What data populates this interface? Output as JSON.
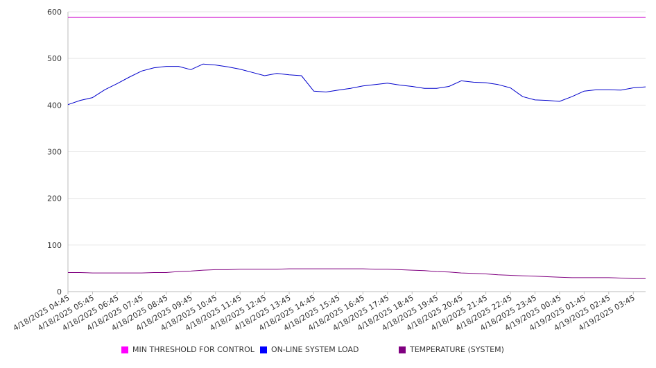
{
  "chart_data": {
    "type": "line",
    "title": "",
    "xlabel": "",
    "ylabel": "",
    "ylim": [
      0,
      600
    ],
    "y_ticks": [
      "0",
      "100",
      "200",
      "300",
      "400",
      "500",
      "600"
    ],
    "grid": true,
    "legend_position": "bottom",
    "x_tick_labels": [
      "4/18/2025 04:45",
      "4/18/2025 05:45",
      "4/18/2025 06:45",
      "4/18/2025 07:45",
      "4/18/2025 08:45",
      "4/18/2025 09:45",
      "4/18/2025 10:45",
      "4/18/2025 11:45",
      "4/18/2025 12:45",
      "4/18/2025 13:45",
      "4/18/2025 14:45",
      "4/18/2025 15:45",
      "4/18/2025 16:45",
      "4/18/2025 17:45",
      "4/18/2025 18:45",
      "4/18/2025 19:45",
      "4/18/2025 20:45",
      "4/18/2025 21:45",
      "4/18/2025 22:45",
      "4/18/2025 23:45",
      "4/19/2025 00:45",
      "4/19/2025 01:45",
      "4/19/2025 02:45",
      "4/19/2025 03:45"
    ],
    "x": [
      "4/18/2025 04:45",
      "4/18/2025 05:15",
      "4/18/2025 05:45",
      "4/18/2025 06:15",
      "4/18/2025 06:45",
      "4/18/2025 07:15",
      "4/18/2025 07:45",
      "4/18/2025 08:15",
      "4/18/2025 08:45",
      "4/18/2025 09:15",
      "4/18/2025 09:45",
      "4/18/2025 10:15",
      "4/18/2025 10:45",
      "4/18/2025 11:15",
      "4/18/2025 11:45",
      "4/18/2025 12:15",
      "4/18/2025 12:45",
      "4/18/2025 13:15",
      "4/18/2025 13:45",
      "4/18/2025 14:15",
      "4/18/2025 14:45",
      "4/18/2025 15:15",
      "4/18/2025 15:45",
      "4/18/2025 16:15",
      "4/18/2025 16:45",
      "4/18/2025 17:15",
      "4/18/2025 17:45",
      "4/18/2025 18:15",
      "4/18/2025 18:45",
      "4/18/2025 19:15",
      "4/18/2025 19:45",
      "4/18/2025 20:15",
      "4/18/2025 20:45",
      "4/18/2025 21:15",
      "4/18/2025 21:45",
      "4/18/2025 22:15",
      "4/18/2025 22:45",
      "4/18/2025 23:15",
      "4/18/2025 23:45",
      "4/19/2025 00:15",
      "4/19/2025 00:45",
      "4/19/2025 01:15",
      "4/19/2025 01:45",
      "4/19/2025 02:15",
      "4/19/2025 02:45",
      "4/19/2025 03:15",
      "4/19/2025 03:45",
      "4/19/2025 04:15"
    ],
    "series": [
      {
        "name": "MIN THRESHOLD FOR CONTROL",
        "color": "#cc00cc",
        "values": [
          588,
          588,
          588,
          588,
          588,
          588,
          588,
          588,
          588,
          588,
          588,
          588,
          588,
          588,
          588,
          588,
          588,
          588,
          588,
          588,
          588,
          588,
          588,
          588,
          588,
          588,
          588,
          588,
          588,
          588,
          588,
          588,
          588,
          588,
          588,
          588,
          588,
          588,
          588,
          588,
          588,
          588,
          588,
          588,
          588,
          588,
          588,
          588
        ]
      },
      {
        "name": "ON-LINE SYSTEM LOAD",
        "color": "#0000cc",
        "values": [
          401,
          410,
          416,
          433,
          446,
          460,
          473,
          480,
          483,
          483,
          476,
          488,
          486,
          482,
          477,
          470,
          463,
          468,
          465,
          463,
          430,
          428,
          432,
          436,
          441,
          444,
          447,
          443,
          440,
          436,
          436,
          440,
          452,
          449,
          448,
          444,
          437,
          418,
          411,
          410,
          408,
          418,
          430,
          433,
          433,
          432,
          437,
          439
        ]
      },
      {
        "name": "TEMPERATURE (SYSTEM)",
        "color": "#800080",
        "values": [
          41,
          41,
          40,
          40,
          40,
          40,
          40,
          41,
          41,
          43,
          44,
          46,
          47,
          47,
          48,
          48,
          48,
          48,
          49,
          49,
          49,
          49,
          49,
          49,
          49,
          48,
          48,
          47,
          46,
          45,
          43,
          42,
          40,
          39,
          38,
          36,
          35,
          34,
          33,
          32,
          31,
          30,
          30,
          30,
          30,
          29,
          28,
          28
        ]
      }
    ]
  },
  "legend": {
    "items": [
      {
        "label": "MIN THRESHOLD FOR CONTROL",
        "color": "#ff00ff"
      },
      {
        "label": "ON-LINE SYSTEM LOAD",
        "color": "#0000ff"
      },
      {
        "label": "TEMPERATURE (SYSTEM)",
        "color": "#800080"
      }
    ]
  }
}
